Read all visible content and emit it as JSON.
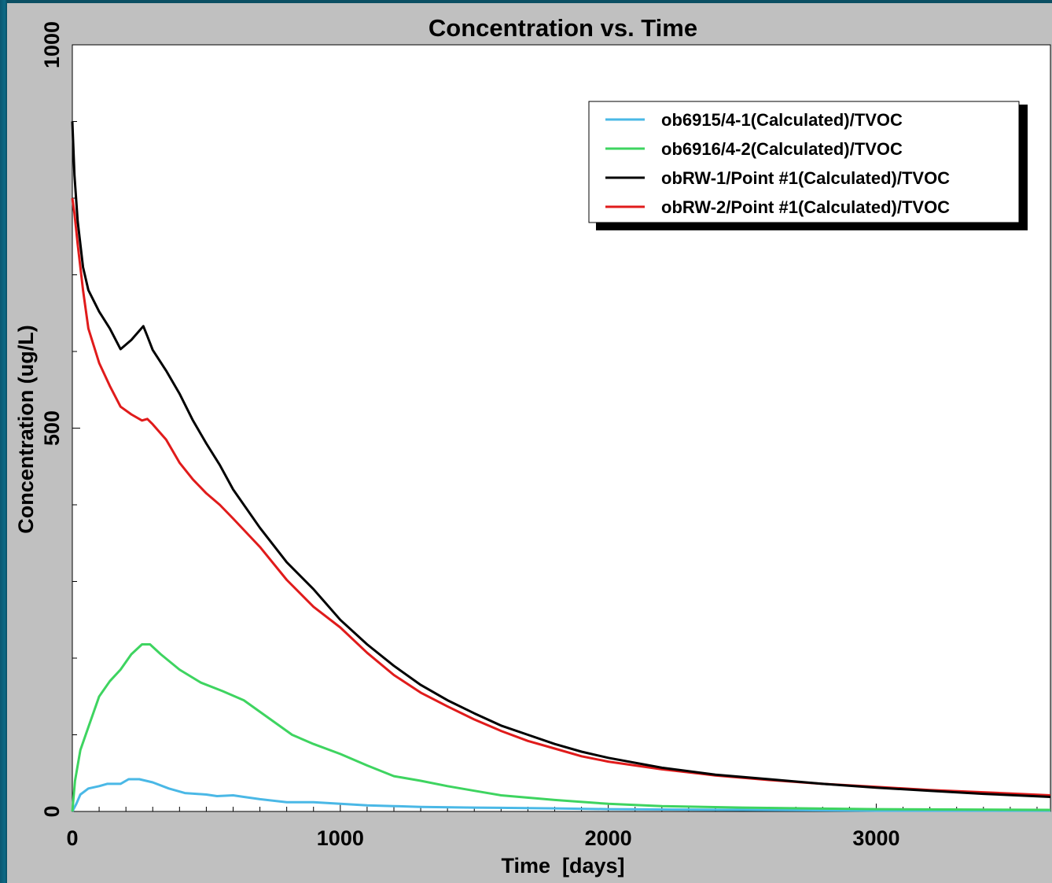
{
  "chart_data": {
    "type": "line",
    "title": "Concentration vs. Time",
    "xlabel": "Time  [days]",
    "ylabel": "Concentration (ug/L)",
    "xlim": [
      0,
      3650
    ],
    "ylim": [
      0,
      1000
    ],
    "x_ticks": [
      0,
      1000,
      2000,
      3000
    ],
    "y_ticks": [
      0,
      500,
      1000
    ],
    "legend_position": "top-right",
    "grid": false,
    "series": [
      {
        "name": "ob6915/4-1(Calculated)/TVOC",
        "color": "#4ab8e6",
        "points": [
          [
            0,
            0
          ],
          [
            15,
            10
          ],
          [
            30,
            22
          ],
          [
            60,
            30
          ],
          [
            100,
            33
          ],
          [
            130,
            36
          ],
          [
            180,
            36
          ],
          [
            210,
            42
          ],
          [
            250,
            42
          ],
          [
            300,
            38
          ],
          [
            360,
            30
          ],
          [
            420,
            24
          ],
          [
            500,
            22
          ],
          [
            540,
            20
          ],
          [
            600,
            21
          ],
          [
            640,
            19
          ],
          [
            700,
            16
          ],
          [
            800,
            12
          ],
          [
            900,
            12
          ],
          [
            1000,
            10
          ],
          [
            1100,
            8
          ],
          [
            1200,
            7
          ],
          [
            1300,
            6
          ],
          [
            1500,
            5
          ],
          [
            1800,
            4
          ],
          [
            2000,
            3
          ],
          [
            2500,
            2
          ],
          [
            3000,
            1
          ],
          [
            3650,
            1
          ]
        ]
      },
      {
        "name": "ob6916/4-2(Calculated)/TVOC",
        "color": "#3ed460",
        "points": [
          [
            0,
            0
          ],
          [
            10,
            40
          ],
          [
            30,
            80
          ],
          [
            60,
            110
          ],
          [
            100,
            150
          ],
          [
            140,
            170
          ],
          [
            180,
            185
          ],
          [
            220,
            205
          ],
          [
            260,
            218
          ],
          [
            290,
            218
          ],
          [
            330,
            205
          ],
          [
            400,
            185
          ],
          [
            480,
            168
          ],
          [
            560,
            157
          ],
          [
            640,
            145
          ],
          [
            720,
            125
          ],
          [
            820,
            100
          ],
          [
            900,
            88
          ],
          [
            1000,
            75
          ],
          [
            1100,
            60
          ],
          [
            1200,
            46
          ],
          [
            1300,
            40
          ],
          [
            1400,
            33
          ],
          [
            1500,
            27
          ],
          [
            1600,
            21
          ],
          [
            1800,
            15
          ],
          [
            2000,
            10
          ],
          [
            2200,
            7
          ],
          [
            2500,
            5
          ],
          [
            3000,
            3
          ],
          [
            3650,
            2
          ]
        ]
      },
      {
        "name": "obRW-1/Point #1(Calculated)/TVOC",
        "color": "#000000",
        "points": [
          [
            0,
            900
          ],
          [
            8,
            830
          ],
          [
            20,
            770
          ],
          [
            40,
            710
          ],
          [
            60,
            680
          ],
          [
            100,
            652
          ],
          [
            140,
            630
          ],
          [
            180,
            603
          ],
          [
            220,
            615
          ],
          [
            265,
            633
          ],
          [
            280,
            620
          ],
          [
            300,
            602
          ],
          [
            350,
            575
          ],
          [
            400,
            545
          ],
          [
            450,
            510
          ],
          [
            500,
            480
          ],
          [
            550,
            452
          ],
          [
            600,
            420
          ],
          [
            700,
            370
          ],
          [
            800,
            325
          ],
          [
            900,
            290
          ],
          [
            1000,
            250
          ],
          [
            1100,
            218
          ],
          [
            1200,
            190
          ],
          [
            1300,
            165
          ],
          [
            1400,
            145
          ],
          [
            1500,
            128
          ],
          [
            1600,
            112
          ],
          [
            1700,
            100
          ],
          [
            1800,
            88
          ],
          [
            1900,
            78
          ],
          [
            2000,
            70
          ],
          [
            2200,
            57
          ],
          [
            2400,
            48
          ],
          [
            2600,
            42
          ],
          [
            2800,
            36
          ],
          [
            3000,
            31
          ],
          [
            3200,
            27
          ],
          [
            3400,
            23
          ],
          [
            3650,
            19
          ]
        ]
      },
      {
        "name": "obRW-2/Point #1(Calculated)/TVOC",
        "color": "#e01b1b",
        "points": [
          [
            0,
            800
          ],
          [
            8,
            780
          ],
          [
            20,
            740
          ],
          [
            40,
            680
          ],
          [
            60,
            630
          ],
          [
            100,
            585
          ],
          [
            140,
            555
          ],
          [
            180,
            528
          ],
          [
            220,
            518
          ],
          [
            260,
            510
          ],
          [
            280,
            512
          ],
          [
            300,
            505
          ],
          [
            350,
            485
          ],
          [
            400,
            455
          ],
          [
            450,
            433
          ],
          [
            500,
            415
          ],
          [
            550,
            400
          ],
          [
            600,
            382
          ],
          [
            700,
            345
          ],
          [
            800,
            302
          ],
          [
            900,
            267
          ],
          [
            1000,
            240
          ],
          [
            1100,
            207
          ],
          [
            1200,
            178
          ],
          [
            1300,
            155
          ],
          [
            1400,
            137
          ],
          [
            1500,
            120
          ],
          [
            1600,
            105
          ],
          [
            1700,
            92
          ],
          [
            1800,
            82
          ],
          [
            1900,
            72
          ],
          [
            2000,
            65
          ],
          [
            2200,
            55
          ],
          [
            2400,
            47
          ],
          [
            2600,
            41
          ],
          [
            2800,
            36
          ],
          [
            3000,
            32
          ],
          [
            3200,
            28
          ],
          [
            3400,
            25
          ],
          [
            3650,
            21
          ]
        ]
      }
    ]
  }
}
